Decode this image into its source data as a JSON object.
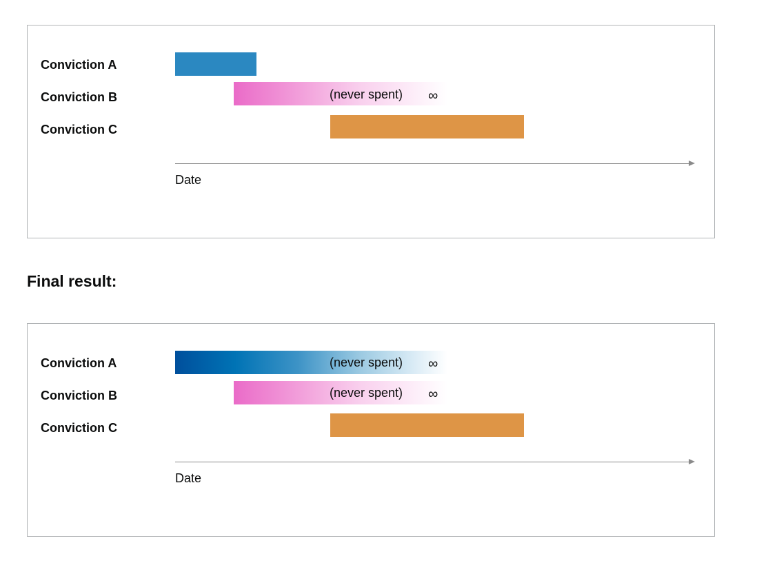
{
  "colors": {
    "blue": "#2b88c1",
    "blue_dark": "#004f9c",
    "pink": "#ea6bc8",
    "orange": "#de9546",
    "axis": "#8a8a8a",
    "border": "#b1b4b6"
  },
  "diagram_1": {
    "rows": [
      {
        "label": "Conviction A"
      },
      {
        "label": "Conviction B",
        "bar_text": "(never spent)",
        "infinity": "∞"
      },
      {
        "label": "Conviction C"
      }
    ],
    "axis_label": "Date"
  },
  "heading": "Final result:",
  "diagram_2": {
    "rows": [
      {
        "label": "Conviction A",
        "bar_text": "(never spent)",
        "infinity": "∞"
      },
      {
        "label": "Conviction B",
        "bar_text": "(never spent)",
        "infinity": "∞"
      },
      {
        "label": "Conviction C"
      }
    ],
    "axis_label": "Date"
  }
}
